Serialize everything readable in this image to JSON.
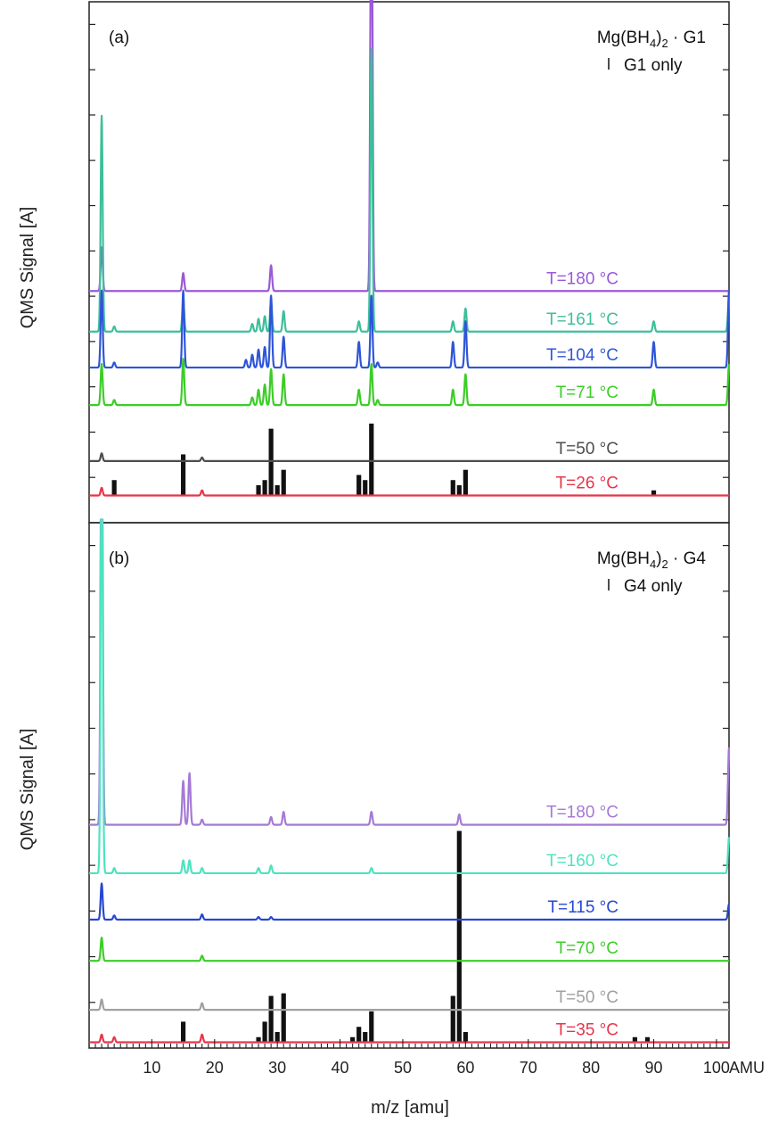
{
  "figure": {
    "ylabel": "QMS Signal [A]",
    "xlabel": "m/z [amu]",
    "x_unit_label": "AMU",
    "x_ticks": [
      10,
      20,
      30,
      40,
      50,
      60,
      70,
      80,
      90,
      100
    ],
    "xlim": [
      0,
      102
    ]
  },
  "chart_data": [
    {
      "type": "line",
      "panel_label": "(a)",
      "legend_title_parts": [
        "Mg(BH",
        "4",
        ")",
        "2",
        " · G1"
      ],
      "legend_marker_label": "G1 only",
      "xlabel": "m/z [amu]",
      "ylabel": "QMS Signal [A]",
      "xlim": [
        0,
        102
      ],
      "ylim": [
        0,
        100
      ],
      "series": [
        {
          "name": "T=180 °C",
          "color": "#9b59d6",
          "offset": 44.4,
          "peaks": [
            [
              2,
              8.5
            ],
            [
              15,
              3.5
            ],
            [
              29,
              5
            ],
            [
              45,
              100
            ]
          ]
        },
        {
          "name": "T=161 °C",
          "color": "#3dbf9a",
          "offset": 36.5,
          "peaks": [
            [
              2,
              42
            ],
            [
              4,
              1
            ],
            [
              15,
              6
            ],
            [
              26,
              1.5
            ],
            [
              27,
              2.5
            ],
            [
              28,
              3
            ],
            [
              29,
              6
            ],
            [
              31,
              4
            ],
            [
              43,
              2
            ],
            [
              45,
              55
            ],
            [
              58,
              2
            ],
            [
              60,
              4.5
            ],
            [
              90,
              2
            ],
            [
              102,
              7
            ]
          ]
        },
        {
          "name": "T=104 °C",
          "color": "#2e55d8",
          "offset": 29.5,
          "peaks": [
            [
              2,
              15
            ],
            [
              4,
              1
            ],
            [
              15,
              15
            ],
            [
              25,
              1.5
            ],
            [
              26,
              2.5
            ],
            [
              27,
              3.5
            ],
            [
              28,
              4
            ],
            [
              29,
              14
            ],
            [
              31,
              6
            ],
            [
              43,
              5
            ],
            [
              45,
              14
            ],
            [
              46,
              1
            ],
            [
              58,
              5
            ],
            [
              60,
              9
            ],
            [
              90,
              5
            ],
            [
              102,
              15
            ]
          ]
        },
        {
          "name": "T=71 °C",
          "color": "#3ccd27",
          "offset": 22.2,
          "peaks": [
            [
              2,
              8
            ],
            [
              4,
              1
            ],
            [
              15,
              9
            ],
            [
              26,
              1.5
            ],
            [
              27,
              3
            ],
            [
              28,
              4
            ],
            [
              29,
              7
            ],
            [
              31,
              6
            ],
            [
              43,
              3
            ],
            [
              45,
              8
            ],
            [
              46,
              1
            ],
            [
              58,
              3
            ],
            [
              60,
              6
            ],
            [
              90,
              3
            ],
            [
              102,
              8
            ]
          ]
        },
        {
          "name": "T=50 °C",
          "color": "#4d4d4d",
          "offset": 11.3,
          "peaks": [
            [
              2,
              1.5
            ],
            [
              18,
              0.7
            ]
          ]
        },
        {
          "name": "T=26 °C",
          "color": "#e8354a",
          "offset": 4.6,
          "peaks": [
            [
              2,
              1.5
            ],
            [
              18,
              1
            ]
          ]
        }
      ],
      "reference_sticks": {
        "name": "G1 only",
        "color": "#111111",
        "baseline_series": "T=26 °C",
        "lines": [
          [
            4,
            3
          ],
          [
            15,
            8
          ],
          [
            27,
            2
          ],
          [
            28,
            3
          ],
          [
            29,
            13
          ],
          [
            30,
            2
          ],
          [
            31,
            5
          ],
          [
            43,
            4
          ],
          [
            44,
            3
          ],
          [
            45,
            14
          ],
          [
            58,
            3
          ],
          [
            59,
            2
          ],
          [
            60,
            5
          ],
          [
            90,
            1
          ]
        ]
      }
    },
    {
      "type": "line",
      "panel_label": "(b)",
      "legend_title_parts": [
        "Mg(BH",
        "4",
        ")",
        "2",
        " · G4"
      ],
      "legend_marker_label": "G4 only",
      "xlabel": "m/z [amu]",
      "ylabel": "QMS Signal [A]",
      "xlim": [
        0,
        102
      ],
      "ylim": [
        0,
        100
      ],
      "series": [
        {
          "name": "T=180 °C",
          "color": "#a47ad6",
          "offset": 42.8,
          "peaks": [
            [
              2,
              100
            ],
            [
              15,
              8.5
            ],
            [
              16,
              10
            ],
            [
              18,
              1
            ],
            [
              29,
              1.5
            ],
            [
              31,
              2.5
            ],
            [
              45,
              2.5
            ],
            [
              59,
              2
            ],
            [
              102,
              15
            ]
          ]
        },
        {
          "name": "T=160 °C",
          "color": "#4ee3c0",
          "offset": 33.4,
          "peaks": [
            [
              2,
              90
            ],
            [
              4,
              1
            ],
            [
              15,
              2.5
            ],
            [
              16,
              2.5
            ],
            [
              18,
              1
            ],
            [
              27,
              1
            ],
            [
              29,
              1.5
            ],
            [
              45,
              1
            ],
            [
              102,
              7
            ]
          ]
        },
        {
          "name": "T=115 °C",
          "color": "#2746d0",
          "offset": 24.4,
          "peaks": [
            [
              2,
              7
            ],
            [
              4,
              0.8
            ],
            [
              18,
              1
            ],
            [
              27,
              0.5
            ],
            [
              29,
              0.5
            ],
            [
              102,
              3
            ]
          ]
        },
        {
          "name": "T=70 °C",
          "color": "#3ccd27",
          "offset": 16.4,
          "peaks": [
            [
              2,
              4.5
            ],
            [
              18,
              1
            ]
          ]
        },
        {
          "name": "T=50 °C",
          "color": "#a0a0a0",
          "offset": 6.9,
          "peaks": [
            [
              2,
              2
            ],
            [
              18,
              1.3
            ]
          ]
        },
        {
          "name": "T=35 °C",
          "color": "#e8354a",
          "offset": 0.6,
          "peaks": [
            [
              2,
              1.5
            ],
            [
              4,
              1
            ],
            [
              18,
              1.5
            ]
          ]
        }
      ],
      "reference_sticks": {
        "name": "G4 only",
        "color": "#111111",
        "baseline_series": "T=35 °C",
        "lines": [
          [
            15,
            4
          ],
          [
            27,
            1
          ],
          [
            28,
            4
          ],
          [
            29,
            9
          ],
          [
            30,
            2
          ],
          [
            31,
            9.5
          ],
          [
            42,
            1
          ],
          [
            43,
            3
          ],
          [
            44,
            2
          ],
          [
            45,
            6
          ],
          [
            58,
            9
          ],
          [
            59,
            41
          ],
          [
            60,
            2
          ],
          [
            87,
            1
          ],
          [
            89,
            1
          ]
        ]
      }
    }
  ]
}
